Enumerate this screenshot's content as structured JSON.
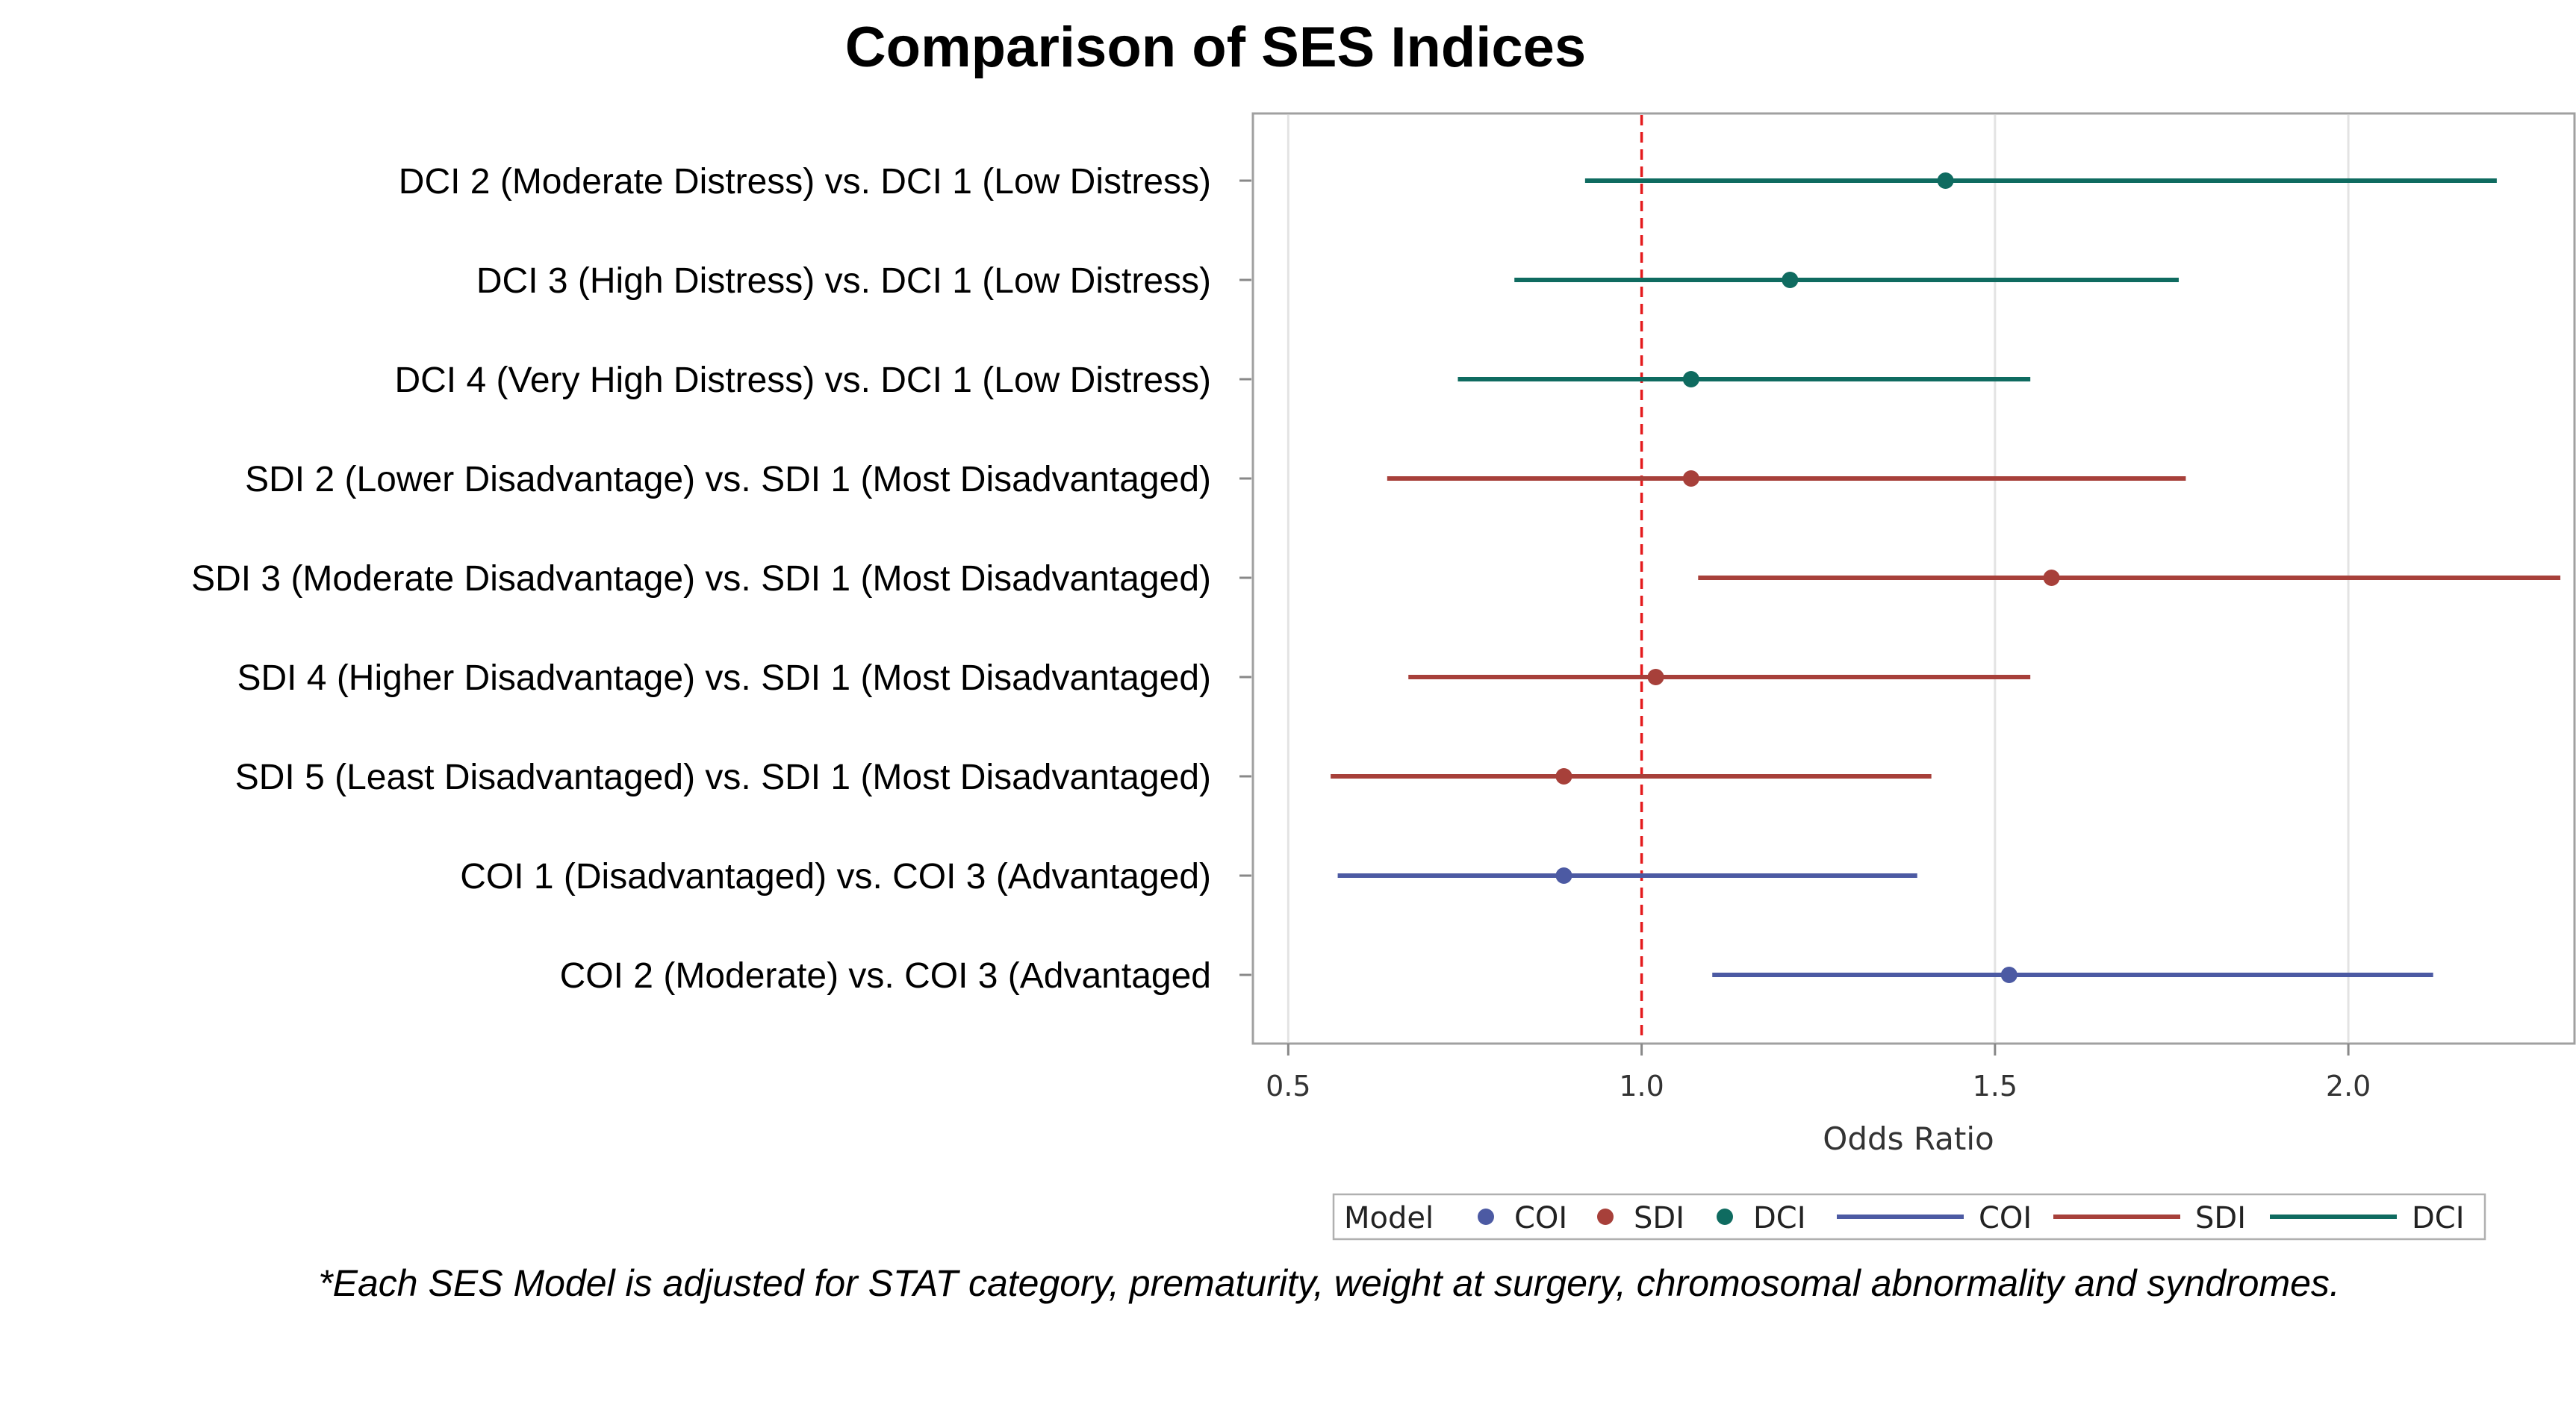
{
  "chart_data": {
    "type": "forest",
    "title": "Comparison of SES Indices",
    "xlabel": "Odds Ratio",
    "xlim": [
      0.45,
      2.32
    ],
    "xticks": [
      0.5,
      1.0,
      1.5,
      2.0
    ],
    "xtick_labels": [
      "0.5",
      "1.0",
      "1.5",
      "2.0"
    ],
    "reference_line": 1.0,
    "reference_color": "#e41a1c",
    "grid": "vertical",
    "rows": [
      {
        "label": "DCI 2 (Moderate Distress) vs. DCI 1 (Low Distress)",
        "model": "DCI",
        "or": 1.43,
        "lower": 0.92,
        "upper": 2.21
      },
      {
        "label": "DCI 3 (High Distress) vs. DCI 1 (Low Distress)",
        "model": "DCI",
        "or": 1.21,
        "lower": 0.82,
        "upper": 1.76
      },
      {
        "label": "DCI 4 (Very High Distress) vs. DCI 1 (Low Distress)",
        "model": "DCI",
        "or": 1.07,
        "lower": 0.74,
        "upper": 1.55
      },
      {
        "label": "SDI 2 (Lower Disadvantage) vs. SDI 1 (Most Disadvantaged)",
        "model": "SDI",
        "or": 1.07,
        "lower": 0.64,
        "upper": 1.77
      },
      {
        "label": "SDI 3 (Moderate Disadvantage) vs. SDI 1 (Most Disadvantaged)",
        "model": "SDI",
        "or": 1.58,
        "lower": 1.08,
        "upper": 2.3
      },
      {
        "label": "SDI 4 (Higher Disadvantage) vs. SDI 1 (Most Disadvantaged)",
        "model": "SDI",
        "or": 1.02,
        "lower": 0.67,
        "upper": 1.55
      },
      {
        "label": "SDI 5 (Least Disadvantaged) vs. SDI 1 (Most Disadvantaged)",
        "model": "SDI",
        "or": 0.89,
        "lower": 0.56,
        "upper": 1.41
      },
      {
        "label": "COI 1 (Disadvantaged) vs. COI 3 (Advantaged)",
        "model": "COI",
        "or": 0.89,
        "lower": 0.57,
        "upper": 1.39
      },
      {
        "label": "COI 2 (Moderate) vs. COI 3 (Advantaged",
        "model": "COI",
        "or": 1.52,
        "lower": 1.1,
        "upper": 2.12
      }
    ],
    "legend": {
      "title": "Model",
      "placement": "bottom",
      "entries": [
        {
          "kind": "marker",
          "label": "COI"
        },
        {
          "kind": "marker",
          "label": "SDI"
        },
        {
          "kind": "marker",
          "label": "DCI"
        },
        {
          "kind": "line",
          "label": "COI"
        },
        {
          "kind": "line",
          "label": "SDI"
        },
        {
          "kind": "line",
          "label": "DCI"
        }
      ]
    },
    "colors": {
      "COI": "#4c5aa3",
      "SDI": "#a7403a",
      "DCI": "#0f6b60"
    }
  },
  "footnote": "*Each SES Model is adjusted for STAT category, prematurity, weight at surgery, chromosomal abnormality and syndromes."
}
